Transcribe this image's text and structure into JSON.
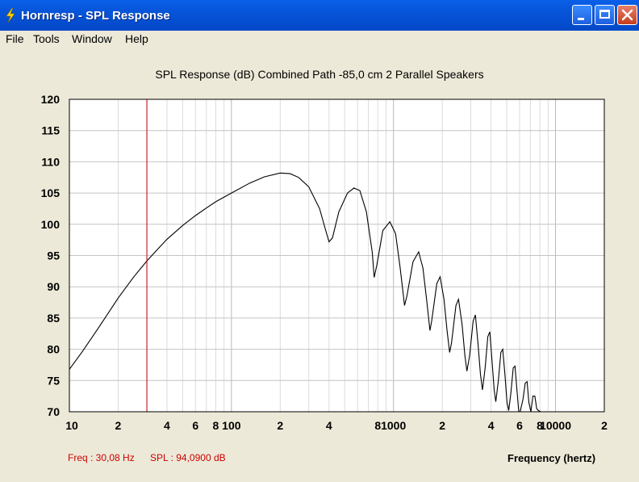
{
  "window": {
    "title": "Hornresp - SPL Response"
  },
  "menu": [
    "File",
    "Tools",
    "Window",
    "Help"
  ],
  "chart_data": {
    "type": "line",
    "title": "SPL Response (dB)   Combined   Path -85,0 cm   2 Parallel Speakers",
    "xlabel": "Frequency (hertz)",
    "ylabel": "",
    "x_scale": "log",
    "xlim": [
      10,
      20000
    ],
    "ylim": [
      70,
      120
    ],
    "y_ticks": [
      70,
      75,
      80,
      85,
      90,
      95,
      100,
      105,
      110,
      115,
      120
    ],
    "x_tick_labels": [
      {
        "value": 10,
        "label": "10"
      },
      {
        "value": 20,
        "label": "2"
      },
      {
        "value": 40,
        "label": "4"
      },
      {
        "value": 60,
        "label": "6"
      },
      {
        "value": 80,
        "label": "8"
      },
      {
        "value": 100,
        "label": "100"
      },
      {
        "value": 200,
        "label": "2"
      },
      {
        "value": 400,
        "label": "4"
      },
      {
        "value": 800,
        "label": "8"
      },
      {
        "value": 1000,
        "label": "1000"
      },
      {
        "value": 2000,
        "label": "2"
      },
      {
        "value": 4000,
        "label": "4"
      },
      {
        "value": 6000,
        "label": "6"
      },
      {
        "value": 8000,
        "label": "8"
      },
      {
        "value": 10000,
        "label": "10000"
      },
      {
        "value": 20000,
        "label": "2"
      }
    ],
    "cursor": {
      "freq": 30.08,
      "spl": 94.09,
      "color": "#cc0000"
    },
    "series": [
      {
        "name": "SPL",
        "color": "#000000",
        "points": [
          [
            10,
            76.8
          ],
          [
            12,
            79.6
          ],
          [
            15,
            83.3
          ],
          [
            20,
            88.2
          ],
          [
            25,
            91.6
          ],
          [
            30,
            94.1
          ],
          [
            35,
            96.0
          ],
          [
            40,
            97.6
          ],
          [
            50,
            99.8
          ],
          [
            60,
            101.4
          ],
          [
            70,
            102.6
          ],
          [
            80,
            103.6
          ],
          [
            100,
            105.0
          ],
          [
            130,
            106.6
          ],
          [
            160,
            107.6
          ],
          [
            200,
            108.2
          ],
          [
            230,
            108.1
          ],
          [
            260,
            107.5
          ],
          [
            300,
            106.0
          ],
          [
            350,
            102.5
          ],
          [
            380,
            99.2
          ],
          [
            400,
            97.2
          ],
          [
            420,
            97.8
          ],
          [
            460,
            102.0
          ],
          [
            520,
            105.0
          ],
          [
            570,
            105.8
          ],
          [
            620,
            105.4
          ],
          [
            680,
            102.0
          ],
          [
            740,
            95.5
          ],
          [
            760,
            91.5
          ],
          [
            790,
            93.5
          ],
          [
            860,
            99.0
          ],
          [
            950,
            100.4
          ],
          [
            1030,
            98.5
          ],
          [
            1100,
            93.0
          ],
          [
            1170,
            87.0
          ],
          [
            1210,
            88.5
          ],
          [
            1320,
            94.0
          ],
          [
            1430,
            95.6
          ],
          [
            1520,
            93.0
          ],
          [
            1600,
            88.0
          ],
          [
            1680,
            83.0
          ],
          [
            1720,
            84.5
          ],
          [
            1850,
            90.5
          ],
          [
            1940,
            91.6
          ],
          [
            2050,
            88.0
          ],
          [
            2140,
            83.0
          ],
          [
            2220,
            79.5
          ],
          [
            2280,
            81.0
          ],
          [
            2430,
            87.0
          ],
          [
            2520,
            88.0
          ],
          [
            2650,
            84.0
          ],
          [
            2760,
            79.0
          ],
          [
            2840,
            76.5
          ],
          [
            2950,
            79.0
          ],
          [
            3100,
            84.5
          ],
          [
            3200,
            85.5
          ],
          [
            3320,
            81.0
          ],
          [
            3440,
            76.0
          ],
          [
            3540,
            73.5
          ],
          [
            3680,
            77.0
          ],
          [
            3820,
            82.0
          ],
          [
            3930,
            82.8
          ],
          [
            4060,
            78.0
          ],
          [
            4180,
            73.5
          ],
          [
            4280,
            71.6
          ],
          [
            4440,
            75.0
          ],
          [
            4600,
            79.5
          ],
          [
            4720,
            80.0
          ],
          [
            4870,
            76.0
          ],
          [
            5020,
            71.5
          ],
          [
            5140,
            70.2
          ],
          [
            5300,
            73.0
          ],
          [
            5480,
            77.0
          ],
          [
            5620,
            77.3
          ],
          [
            5780,
            73.5
          ],
          [
            5930,
            70.0
          ],
          [
            6050,
            69.5
          ],
          [
            6300,
            72.0
          ],
          [
            6500,
            74.6
          ],
          [
            6680,
            74.8
          ],
          [
            6850,
            71.5
          ],
          [
            7050,
            69.5
          ],
          [
            7250,
            72.5
          ],
          [
            7450,
            72.5
          ],
          [
            7650,
            70.5
          ],
          [
            7850,
            70.2
          ],
          [
            8100,
            70.0
          ]
        ]
      }
    ]
  },
  "status": {
    "freq_text": "Freq : 30,08 Hz",
    "spl_text": "SPL : 94,0900 dB"
  }
}
